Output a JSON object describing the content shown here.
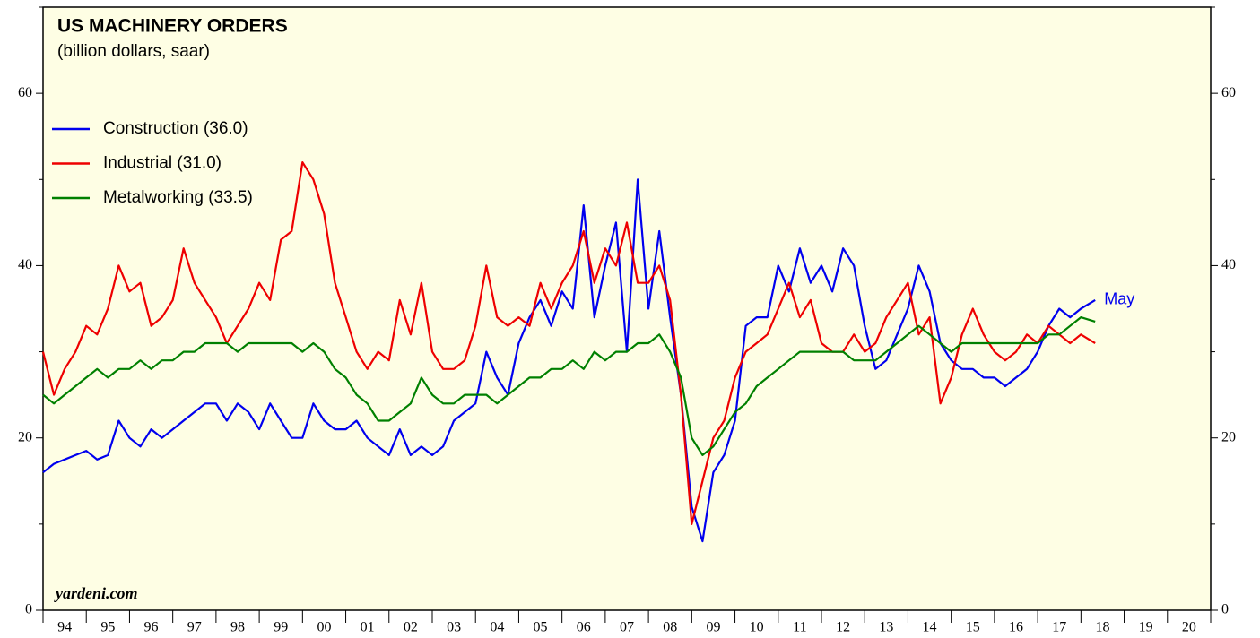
{
  "chart_data": {
    "type": "line",
    "title": "US MACHINERY ORDERS",
    "subtitle": "(billion dollars, saar)",
    "source": "yardeni.com",
    "annotation": "May",
    "background": "#fefee4",
    "xlim": [
      1994,
      2021
    ],
    "ylim": [
      0,
      70
    ],
    "yticks": [
      0,
      20,
      40,
      60
    ],
    "yminor": [
      10,
      30,
      50,
      70
    ],
    "xticks": [
      {
        "value": 1994.5,
        "label": "94"
      },
      {
        "value": 1995.5,
        "label": "95"
      },
      {
        "value": 1996.5,
        "label": "96"
      },
      {
        "value": 1997.5,
        "label": "97"
      },
      {
        "value": 1998.5,
        "label": "98"
      },
      {
        "value": 1999.5,
        "label": "99"
      },
      {
        "value": 2000.5,
        "label": "00"
      },
      {
        "value": 2001.5,
        "label": "01"
      },
      {
        "value": 2002.5,
        "label": "02"
      },
      {
        "value": 2003.5,
        "label": "03"
      },
      {
        "value": 2004.5,
        "label": "04"
      },
      {
        "value": 2005.5,
        "label": "05"
      },
      {
        "value": 2006.5,
        "label": "06"
      },
      {
        "value": 2007.5,
        "label": "07"
      },
      {
        "value": 2008.5,
        "label": "08"
      },
      {
        "value": 2009.5,
        "label": "09"
      },
      {
        "value": 2010.5,
        "label": "10"
      },
      {
        "value": 2011.5,
        "label": "11"
      },
      {
        "value": 2012.5,
        "label": "12"
      },
      {
        "value": 2013.5,
        "label": "13"
      },
      {
        "value": 2014.5,
        "label": "14"
      },
      {
        "value": 2015.5,
        "label": "15"
      },
      {
        "value": 2016.5,
        "label": "16"
      },
      {
        "value": 2017.5,
        "label": "17"
      },
      {
        "value": 2018.5,
        "label": "18"
      },
      {
        "value": 2019.5,
        "label": "19"
      },
      {
        "value": 2020.5,
        "label": "20"
      }
    ],
    "xminor": [
      1994,
      1995,
      1996,
      1997,
      1998,
      1999,
      2000,
      2001,
      2002,
      2003,
      2004,
      2005,
      2006,
      2007,
      2008,
      2009,
      2010,
      2011,
      2012,
      2013,
      2014,
      2015,
      2016,
      2017,
      2018,
      2019,
      2020,
      2021
    ],
    "x": [
      1994,
      1994.25,
      1994.5,
      1994.75,
      1995,
      1995.25,
      1995.5,
      1995.75,
      1996,
      1996.25,
      1996.5,
      1996.75,
      1997,
      1997.25,
      1997.5,
      1997.75,
      1998,
      1998.25,
      1998.5,
      1998.75,
      1999,
      1999.25,
      1999.5,
      1999.75,
      2000,
      2000.25,
      2000.5,
      2000.75,
      2001,
      2001.25,
      2001.5,
      2001.75,
      2002,
      2002.25,
      2002.5,
      2002.75,
      2003,
      2003.25,
      2003.5,
      2003.75,
      2004,
      2004.25,
      2004.5,
      2004.75,
      2005,
      2005.25,
      2005.5,
      2005.75,
      2006,
      2006.25,
      2006.5,
      2006.75,
      2007,
      2007.25,
      2007.5,
      2007.75,
      2008,
      2008.25,
      2008.5,
      2008.75,
      2009,
      2009.25,
      2009.5,
      2009.75,
      2010,
      2010.25,
      2010.5,
      2010.75,
      2011,
      2011.25,
      2011.5,
      2011.75,
      2012,
      2012.25,
      2012.5,
      2012.75,
      2013,
      2013.25,
      2013.5,
      2013.75,
      2014,
      2014.25,
      2014.5,
      2014.75,
      2015,
      2015.25,
      2015.5,
      2015.75,
      2016,
      2016.25,
      2016.5,
      2016.75,
      2017,
      2017.25,
      2017.5,
      2017.75,
      2018,
      2018.33
    ],
    "series": [
      {
        "name": "Construction (36.0)",
        "color": "#0000ee",
        "values": [
          16,
          17,
          17.5,
          18,
          18.5,
          17.5,
          18,
          22,
          20,
          19,
          21,
          20,
          21,
          22,
          23,
          24,
          24,
          22,
          24,
          23,
          21,
          24,
          22,
          20,
          20,
          24,
          22,
          21,
          21,
          22,
          20,
          19,
          18,
          21,
          18,
          19,
          18,
          19,
          22,
          23,
          24,
          30,
          27,
          25,
          31,
          34,
          36,
          33,
          37,
          35,
          47,
          34,
          40,
          45,
          30,
          50,
          35,
          44,
          34,
          25,
          12,
          8,
          16,
          18,
          22,
          33,
          34,
          34,
          40,
          37,
          42,
          38,
          40,
          37,
          42,
          40,
          33,
          28,
          29,
          32,
          35,
          40,
          37,
          31,
          29,
          28,
          28,
          27,
          27,
          26,
          27,
          28,
          30,
          33,
          35,
          34,
          35,
          36
        ]
      },
      {
        "name": "Industrial (31.0)",
        "color": "#ee0000",
        "values": [
          30,
          25,
          28,
          30,
          33,
          32,
          35,
          40,
          37,
          38,
          33,
          34,
          36,
          42,
          38,
          36,
          34,
          31,
          33,
          35,
          38,
          36,
          43,
          44,
          52,
          50,
          46,
          38,
          34,
          30,
          28,
          30,
          29,
          36,
          32,
          38,
          30,
          28,
          28,
          29,
          33,
          40,
          34,
          33,
          34,
          33,
          38,
          35,
          38,
          40,
          44,
          38,
          42,
          40,
          45,
          38,
          38,
          40,
          36,
          25,
          10,
          15,
          20,
          22,
          27,
          30,
          31,
          32,
          35,
          38,
          34,
          36,
          31,
          30,
          30,
          32,
          30,
          31,
          34,
          36,
          38,
          32,
          34,
          24,
          27,
          32,
          35,
          32,
          30,
          29,
          30,
          32,
          31,
          33,
          32,
          31,
          32,
          31
        ]
      },
      {
        "name": "Metalworking (33.5)",
        "color": "#008000",
        "values": [
          25,
          24,
          25,
          26,
          27,
          28,
          27,
          28,
          28,
          29,
          28,
          29,
          29,
          30,
          30,
          31,
          31,
          31,
          30,
          31,
          31,
          31,
          31,
          31,
          30,
          31,
          30,
          28,
          27,
          25,
          24,
          22,
          22,
          23,
          24,
          27,
          25,
          24,
          24,
          25,
          25,
          25,
          24,
          25,
          26,
          27,
          27,
          28,
          28,
          29,
          28,
          30,
          29,
          30,
          30,
          31,
          31,
          32,
          30,
          27,
          20,
          18,
          19,
          21,
          23,
          24,
          26,
          27,
          28,
          29,
          30,
          30,
          30,
          30,
          30,
          29,
          29,
          29,
          30,
          31,
          32,
          33,
          32,
          31,
          30,
          31,
          31,
          31,
          31,
          31,
          31,
          31,
          31,
          32,
          32,
          33,
          34,
          33.5
        ]
      }
    ]
  }
}
